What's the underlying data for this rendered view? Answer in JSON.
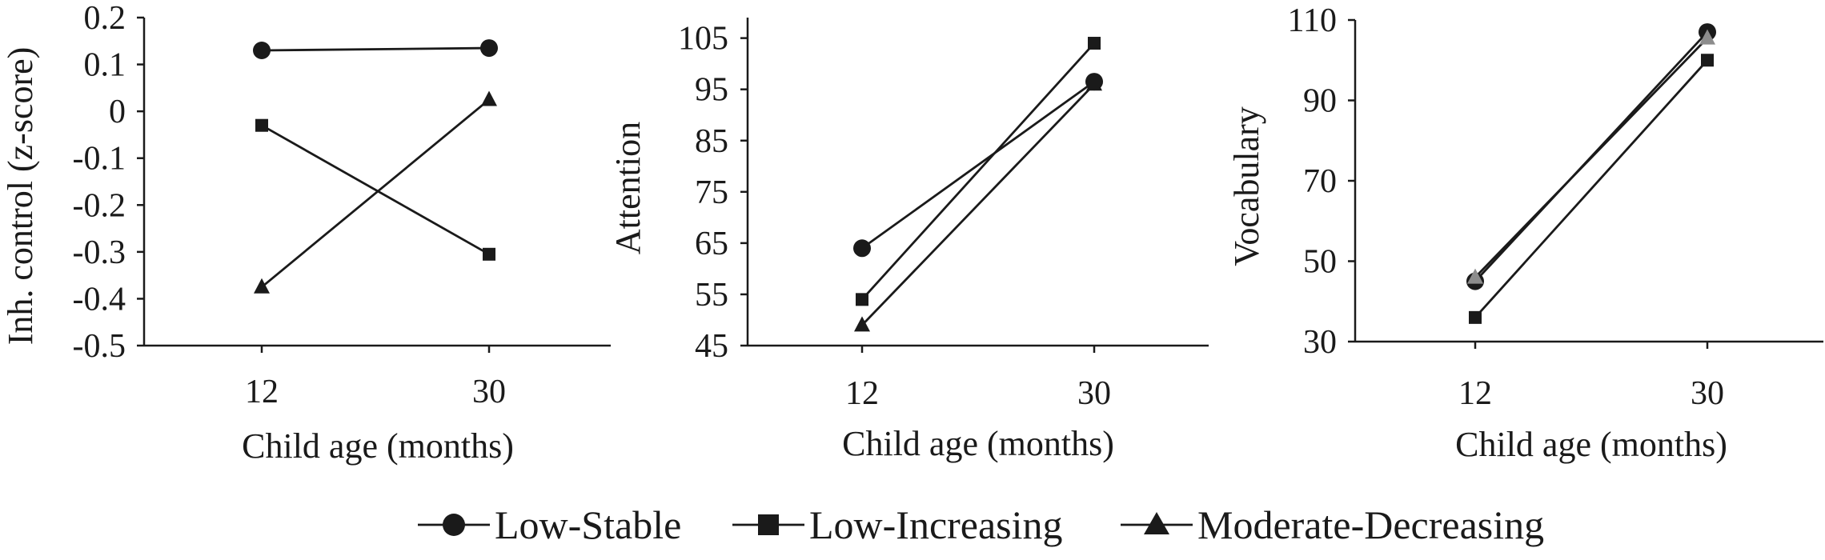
{
  "chart_data": [
    {
      "type": "line",
      "title": "",
      "xlabel": "Child age (months)",
      "ylabel": "Inh. control (z-score)",
      "categories": [
        "12",
        "30"
      ],
      "ylim": [
        -0.5,
        0.2
      ],
      "yticks": [
        0.2,
        0.1,
        0,
        -0.1,
        -0.2,
        -0.3,
        -0.4,
        -0.5
      ],
      "ytick_labels": [
        "0.2",
        "0.1",
        "0",
        "-0.1",
        "-0.2",
        "-0.3",
        "-0.4",
        "-0.5"
      ],
      "series": [
        {
          "name": "Low-Stable",
          "marker": "circle",
          "values": [
            0.13,
            0.135
          ]
        },
        {
          "name": "Low-Increasing",
          "marker": "square",
          "values": [
            -0.03,
            -0.305
          ]
        },
        {
          "name": "Moderate-Decreasing",
          "marker": "triangle",
          "values": [
            -0.375,
            0.025
          ]
        }
      ]
    },
    {
      "type": "line",
      "title": "",
      "xlabel": "Child age (months)",
      "ylabel": "Attention",
      "categories": [
        "12",
        "30"
      ],
      "ylim": [
        45,
        109
      ],
      "yticks": [
        105,
        95,
        85,
        75,
        65,
        55,
        45
      ],
      "ytick_labels": [
        "105",
        "95",
        "85",
        "75",
        "65",
        "55",
        "45"
      ],
      "series": [
        {
          "name": "Low-Stable",
          "marker": "circle",
          "values": [
            64,
            96.5
          ]
        },
        {
          "name": "Low-Increasing",
          "marker": "square",
          "values": [
            54,
            104
          ]
        },
        {
          "name": "Moderate-Decreasing",
          "marker": "triangle",
          "values": [
            49,
            96
          ]
        }
      ]
    },
    {
      "type": "line",
      "title": "",
      "xlabel": "Child age (months)",
      "ylabel": "Vocabulary",
      "categories": [
        "12",
        "30"
      ],
      "ylim": [
        30,
        110
      ],
      "yticks": [
        110,
        90,
        70,
        50,
        30
      ],
      "ytick_labels": [
        "110",
        "90",
        "70",
        "50",
        "30"
      ],
      "series": [
        {
          "name": "Low-Stable",
          "marker": "circle",
          "values": [
            45,
            107
          ]
        },
        {
          "name": "Low-Increasing",
          "marker": "square",
          "values": [
            36,
            100
          ]
        },
        {
          "name": "Moderate-Decreasing",
          "marker": "triangle",
          "values": [
            46,
            105.5
          ]
        }
      ]
    }
  ],
  "legend": {
    "entries": [
      {
        "label": "Low-Stable",
        "marker": "circle"
      },
      {
        "label": "Low-Increasing",
        "marker": "square"
      },
      {
        "label": "Moderate-Decreasing",
        "marker": "triangle"
      }
    ]
  }
}
